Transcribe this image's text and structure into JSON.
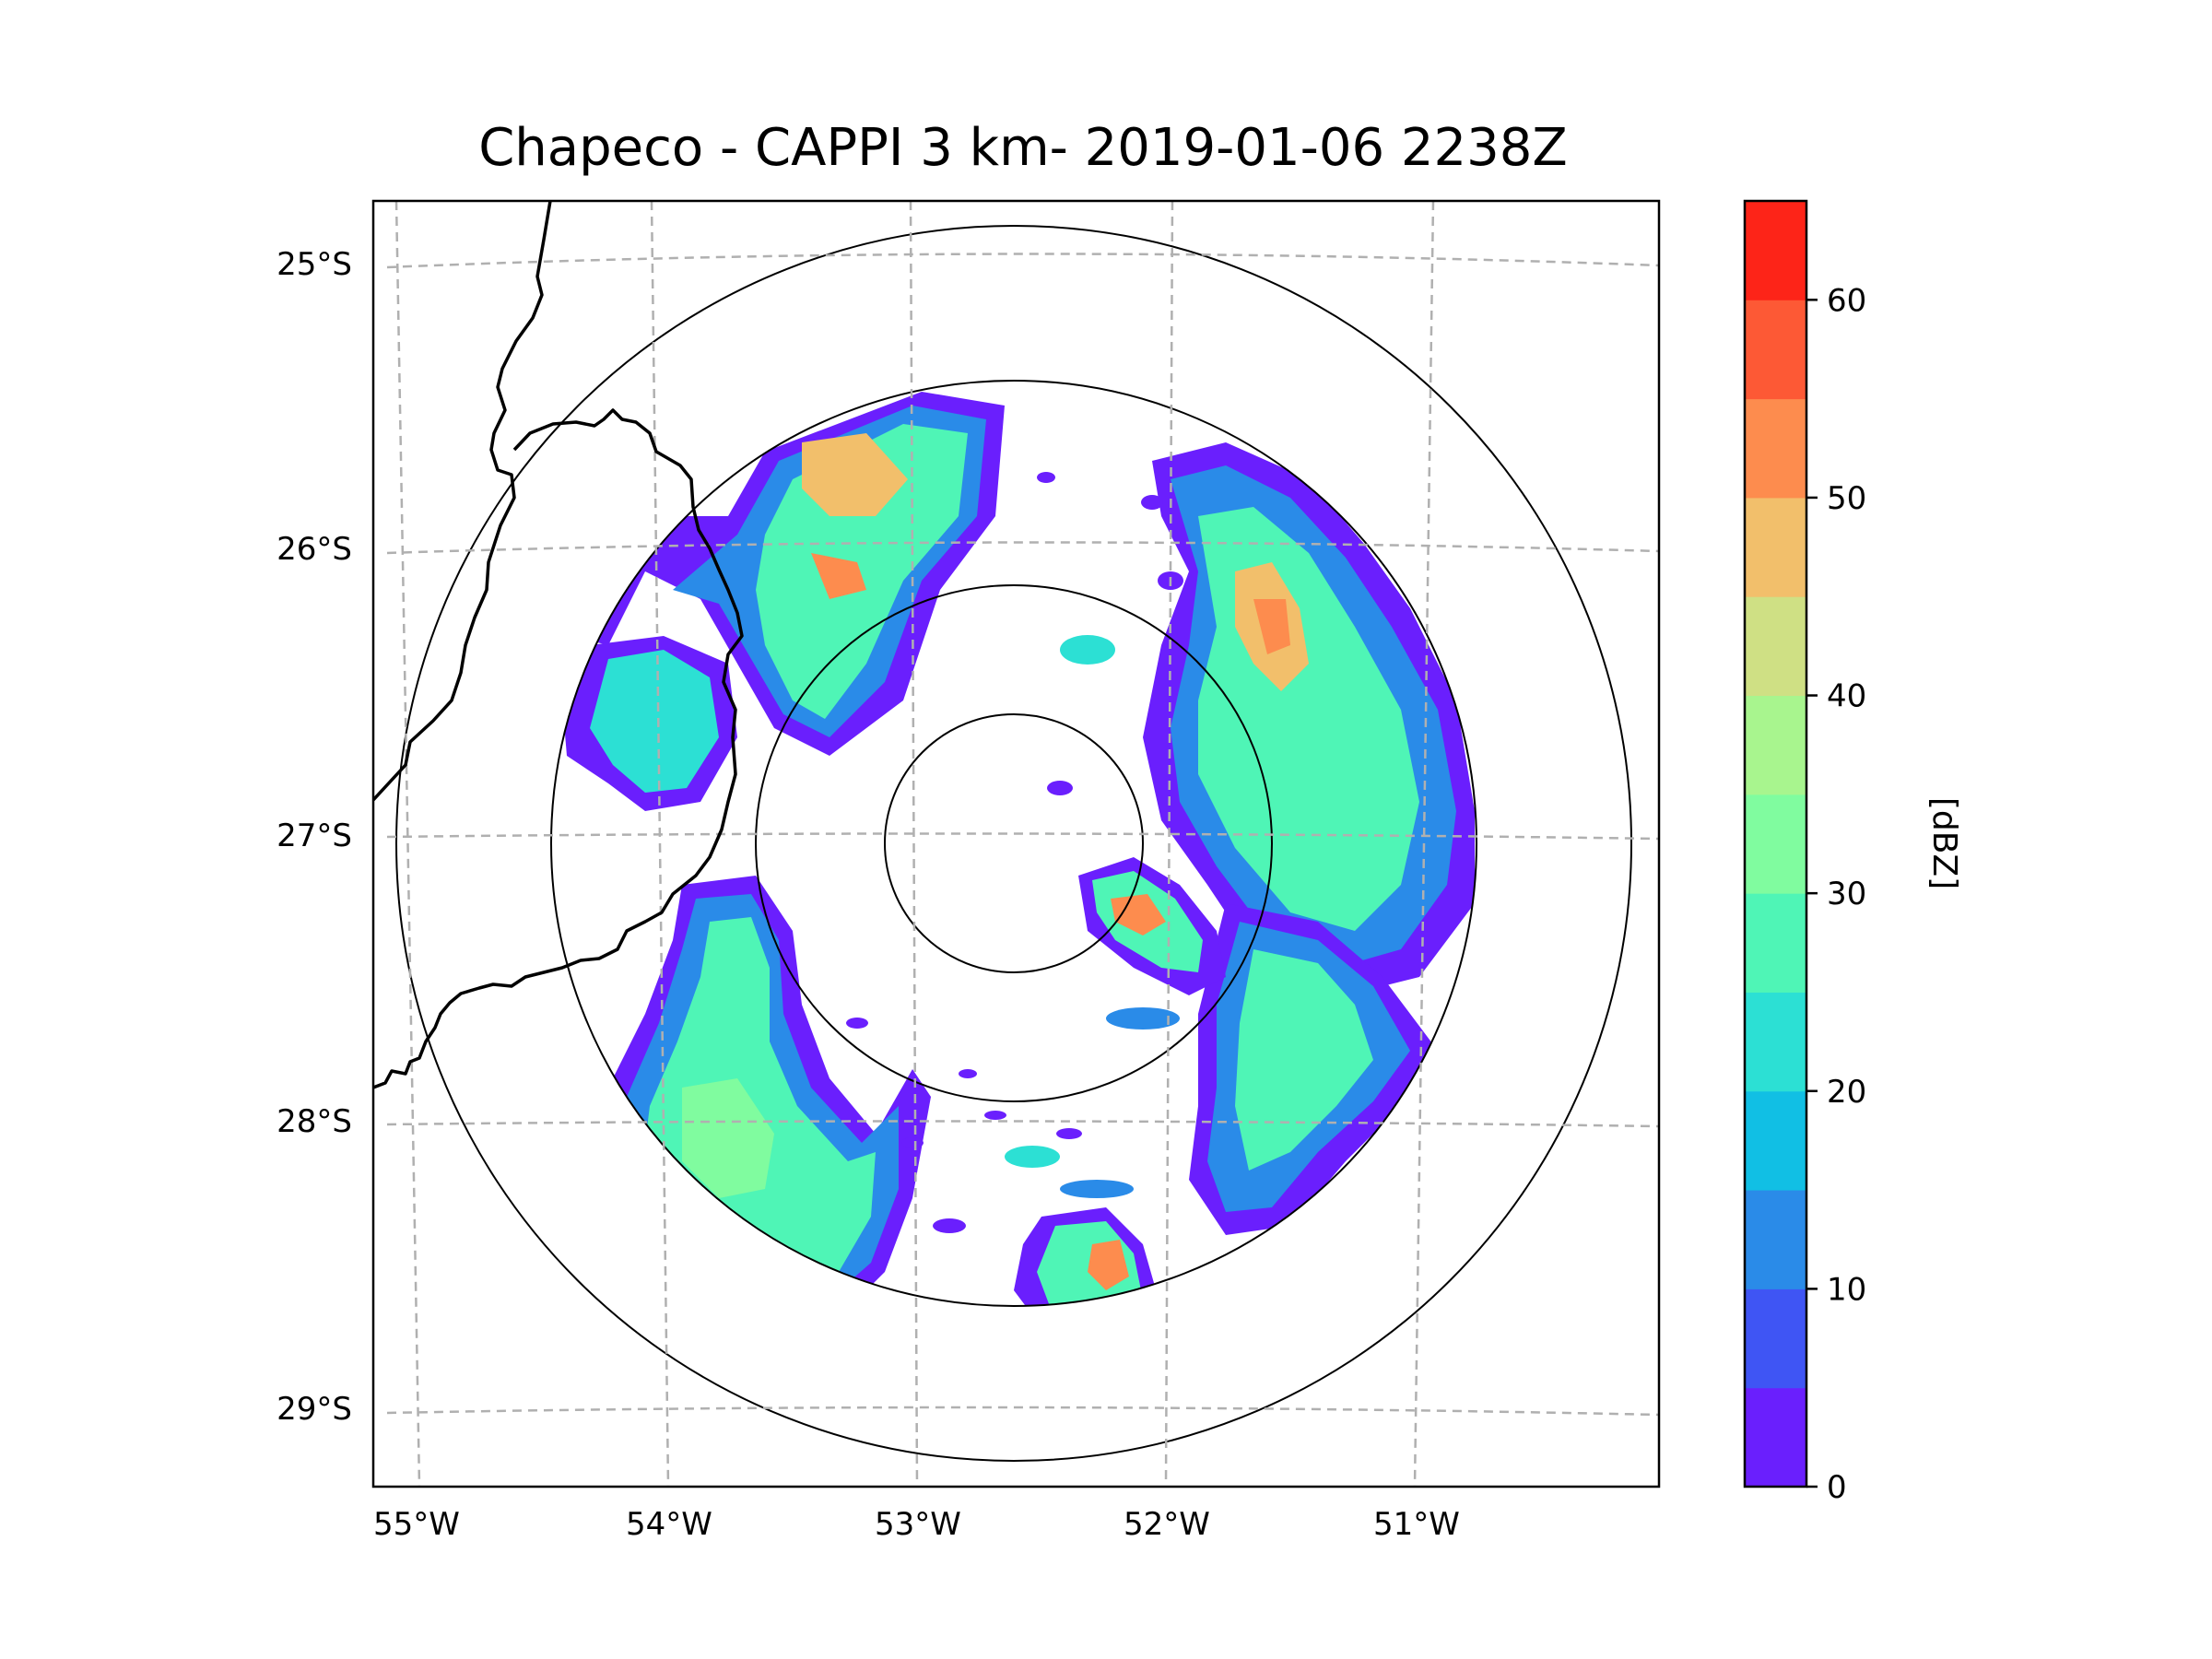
{
  "title": "Chapeco - CAPPI 3 km- 2019-01-06 2238Z",
  "colorbar": {
    "label": "[dBZ]",
    "ticks": [
      "0",
      "10",
      "20",
      "30",
      "40",
      "50",
      "60"
    ],
    "colors": [
      "#6a1ffd",
      "#3f55f4",
      "#2a8be8",
      "#11bfe4",
      "#2ce0d4",
      "#4ff5b6",
      "#80fc9f",
      "#a8f58e",
      "#cfe084",
      "#f2bf6b",
      "#fd8c4e",
      "#fd5935",
      "#fd2418"
    ]
  },
  "lat_labels": [
    "25°S",
    "26°S",
    "27°S",
    "28°S",
    "29°S"
  ],
  "lon_labels": [
    "55°W",
    "54°W",
    "53°W",
    "52°W",
    "51°W"
  ],
  "reflectivity_scale": {
    "min": 0,
    "max": 65,
    "unit": "dBZ"
  }
}
